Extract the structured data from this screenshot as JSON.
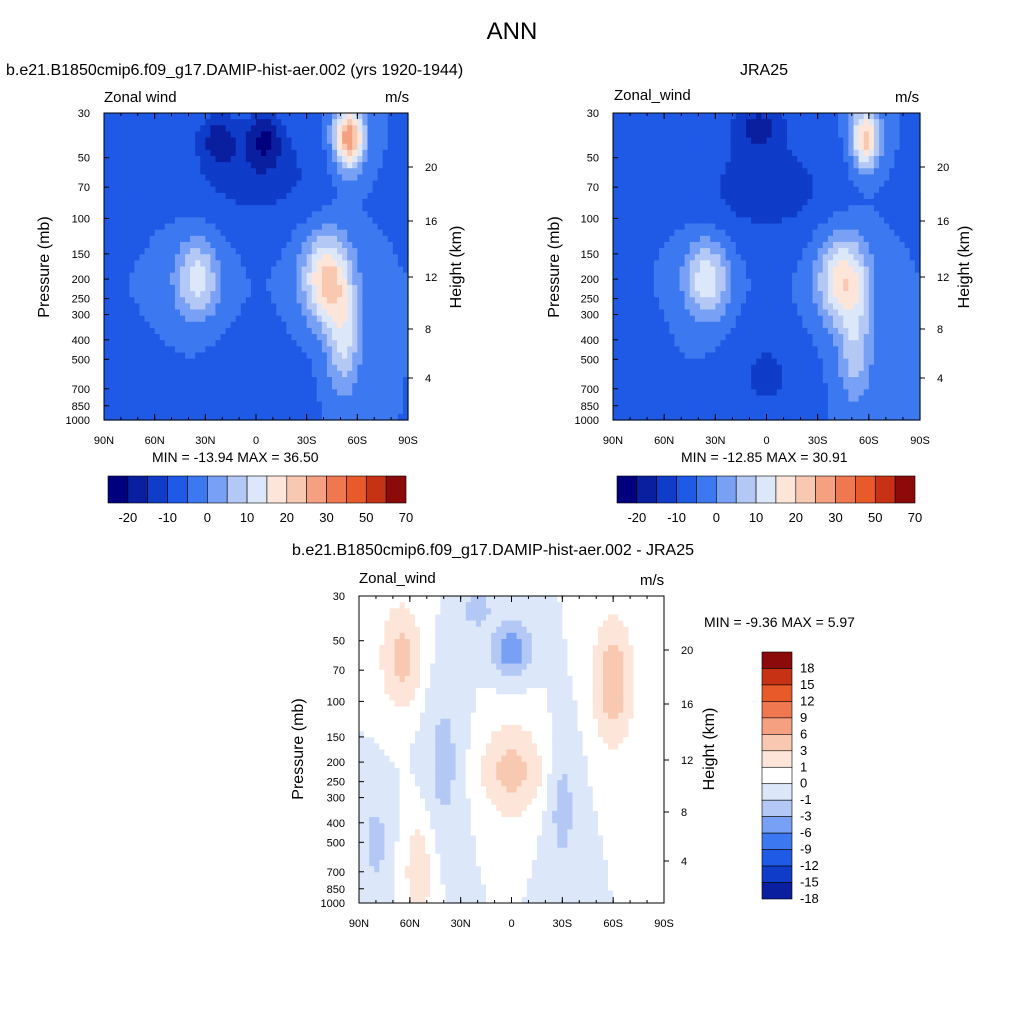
{
  "page": {
    "main_title": "ANN",
    "colors": {
      "frame": "#000000",
      "background": "#ffffff"
    }
  },
  "panels": [
    {
      "id": "model",
      "title": "b.e21.B1850cmip6.f09_g17.DAMIP-hist-aer.002 (yrs 1920-1944)",
      "left_label": "Zonal wind",
      "right_label": "m/s",
      "stats": "MIN = -13.94  MAX =  36.50",
      "y_label": "Pressure (mb)",
      "y2_label": "Height (km)"
    },
    {
      "id": "obs",
      "title": "JRA25",
      "left_label": "Zonal_wind",
      "right_label": "m/s",
      "stats": "MIN = -12.85  MAX =  30.91",
      "y_label": "Pressure (mb)",
      "y2_label": "Height (km)"
    },
    {
      "id": "diff",
      "title": "b.e21.B1850cmip6.f09_g17.DAMIP-hist-aer.002 - JRA25",
      "left_label": "Zonal_wind",
      "right_label": "m/s",
      "stats": "MIN =  -9.36  MAX =   5.97",
      "y_label": "Pressure (mb)",
      "y2_label": "Height (km)"
    }
  ],
  "chart_data": [
    {
      "type": "heatmap",
      "title": "b.e21.B1850cmip6.f09_g17.DAMIP-hist-aer.002 (yrs 1920-1944)",
      "variable": "Zonal wind",
      "units": "m/s",
      "x_ticks": [
        "90N",
        "60N",
        "30N",
        "0",
        "30S",
        "60S",
        "90S"
      ],
      "x_values": [
        90,
        60,
        30,
        0,
        -30,
        -60,
        -90
      ],
      "y_ticks": [
        "30",
        "50",
        "70",
        "100",
        "150",
        "200",
        "250",
        "300",
        "400",
        "500",
        "700",
        "850",
        "1000"
      ],
      "y_values": [
        30,
        50,
        70,
        100,
        150,
        200,
        250,
        300,
        400,
        500,
        700,
        850,
        1000
      ],
      "y_scale": "log",
      "y_reversed": true,
      "y2_ticks": [
        "4",
        "8",
        "12",
        "16",
        "20"
      ],
      "min": -13.94,
      "max": 36.5,
      "colorbar_levels": [
        -20,
        -15,
        -10,
        -5,
        0,
        5,
        10,
        15,
        20,
        25,
        30,
        40,
        50,
        60,
        70
      ],
      "colorbar_labels": [
        "-20",
        "-10",
        "0",
        "10",
        "20",
        "30",
        "50",
        "70"
      ],
      "blobs": [
        {
          "lat": 0,
          "p": 60,
          "v": -8,
          "rlat": 38,
          "rlogp": 0.55
        },
        {
          "lat": 22,
          "p": 40,
          "v": -10,
          "rlat": 12,
          "rlogp": 0.3
        },
        {
          "lat": -5,
          "p": 40,
          "v": -12,
          "rlat": 10,
          "rlogp": 0.3
        },
        {
          "lat": 0,
          "p": 700,
          "v": -5,
          "rlat": 25,
          "rlogp": 0.5
        },
        {
          "lat": 75,
          "p": 850,
          "v": -4,
          "rlat": 25,
          "rlogp": 0.45
        },
        {
          "lat": 35,
          "p": 200,
          "v": 18,
          "rlat": 13,
          "rlogp": 0.45
        },
        {
          "lat": -42,
          "p": 200,
          "v": 27,
          "rlat": 14,
          "rlogp": 0.5
        },
        {
          "lat": -55,
          "p": 40,
          "v": 35,
          "rlat": 9,
          "rlogp": 0.35
        },
        {
          "lat": -52,
          "p": 400,
          "v": 16,
          "rlat": 10,
          "rlogp": 0.6
        }
      ]
    },
    {
      "type": "heatmap",
      "title": "JRA25",
      "variable": "Zonal_wind",
      "units": "m/s",
      "x_ticks": [
        "90N",
        "60N",
        "30N",
        "0",
        "30S",
        "60S",
        "90S"
      ],
      "x_values": [
        90,
        60,
        30,
        0,
        -30,
        -60,
        -90
      ],
      "y_ticks": [
        "30",
        "50",
        "70",
        "100",
        "150",
        "200",
        "250",
        "300",
        "400",
        "500",
        "700",
        "850",
        "1000"
      ],
      "y_values": [
        30,
        50,
        70,
        100,
        150,
        200,
        250,
        300,
        400,
        500,
        700,
        850,
        1000
      ],
      "y_scale": "log",
      "y_reversed": true,
      "y2_ticks": [
        "4",
        "8",
        "12",
        "16",
        "20"
      ],
      "min": -12.85,
      "max": 30.91,
      "colorbar_levels": [
        -20,
        -15,
        -10,
        -5,
        0,
        5,
        10,
        15,
        20,
        25,
        30,
        40,
        50,
        60,
        70
      ],
      "colorbar_labels": [
        "-20",
        "-10",
        "0",
        "10",
        "20",
        "30",
        "50",
        "70"
      ],
      "blobs": [
        {
          "lat": 0,
          "p": 70,
          "v": -8,
          "rlat": 40,
          "rlogp": 0.6
        },
        {
          "lat": 5,
          "p": 35,
          "v": -11,
          "rlat": 15,
          "rlogp": 0.25
        },
        {
          "lat": 0,
          "p": 600,
          "v": -6,
          "rlat": 22,
          "rlogp": 0.6
        },
        {
          "lat": 80,
          "p": 700,
          "v": -4,
          "rlat": 18,
          "rlogp": 0.6
        },
        {
          "lat": 35,
          "p": 200,
          "v": 19,
          "rlat": 13,
          "rlogp": 0.45
        },
        {
          "lat": -45,
          "p": 200,
          "v": 24,
          "rlat": 15,
          "rlogp": 0.5
        },
        {
          "lat": -58,
          "p": 40,
          "v": 28,
          "rlat": 8,
          "rlogp": 0.35
        },
        {
          "lat": -52,
          "p": 450,
          "v": 13,
          "rlat": 10,
          "rlogp": 0.6
        }
      ]
    },
    {
      "type": "heatmap",
      "title": "b.e21.B1850cmip6.f09_g17.DAMIP-hist-aer.002 - JRA25",
      "variable": "Zonal_wind",
      "units": "m/s",
      "x_ticks": [
        "90N",
        "60N",
        "30N",
        "0",
        "30S",
        "60S",
        "90S"
      ],
      "x_values": [
        90,
        60,
        30,
        0,
        -30,
        -60,
        -90
      ],
      "y_ticks": [
        "30",
        "50",
        "70",
        "100",
        "150",
        "200",
        "250",
        "300",
        "400",
        "500",
        "700",
        "850",
        "1000"
      ],
      "y_values": [
        30,
        50,
        70,
        100,
        150,
        200,
        250,
        300,
        400,
        500,
        700,
        850,
        1000
      ],
      "y_scale": "log",
      "y_reversed": true,
      "y2_ticks": [
        "4",
        "8",
        "12",
        "16",
        "20"
      ],
      "min": -9.36,
      "max": 5.97,
      "colorbar_levels": [
        -21,
        -18,
        -15,
        -12,
        -9,
        -6,
        -3,
        -1,
        0,
        1,
        3,
        6,
        9,
        12,
        15,
        18,
        21
      ],
      "colorbar_labels": [
        "18",
        "15",
        "12",
        "9",
        "6",
        "3",
        "1",
        "0",
        "-1",
        "-3",
        "-6",
        "-9",
        "-12",
        "-15",
        "-18"
      ],
      "blobs": [
        {
          "lat": 65,
          "p": 60,
          "v": 4,
          "rlat": 10,
          "rlogp": 0.5
        },
        {
          "lat": 40,
          "p": 200,
          "v": -1.5,
          "rlat": 10,
          "rlogp": 0.8
        },
        {
          "lat": 0,
          "p": 55,
          "v": -5,
          "rlat": 10,
          "rlogp": 0.25
        },
        {
          "lat": 20,
          "p": 35,
          "v": -2,
          "rlat": 8,
          "rlogp": 0.2
        },
        {
          "lat": 0,
          "p": 220,
          "v": 4,
          "rlat": 15,
          "rlogp": 0.45
        },
        {
          "lat": -60,
          "p": 80,
          "v": 5,
          "rlat": 10,
          "rlogp": 0.6
        },
        {
          "lat": -30,
          "p": 350,
          "v": -1.5,
          "rlat": 8,
          "rlogp": 0.7
        },
        {
          "lat": 80,
          "p": 500,
          "v": -1.5,
          "rlat": 8,
          "rlogp": 0.5
        },
        {
          "lat": 55,
          "p": 700,
          "v": 2,
          "rlat": 8,
          "rlogp": 0.6
        }
      ]
    }
  ]
}
